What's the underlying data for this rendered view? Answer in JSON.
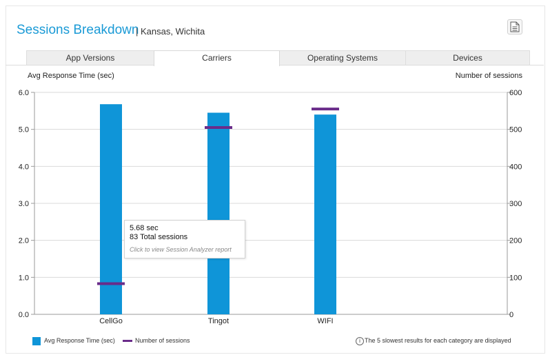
{
  "header": {
    "title": "Sessions Breakdown",
    "subtitle": "| Kansas, Wichita"
  },
  "toolbar": {
    "export_icon": "document-icon"
  },
  "tabs": [
    {
      "label": "App Versions",
      "active": false
    },
    {
      "label": "Carriers",
      "active": true
    },
    {
      "label": "Operating Systems",
      "active": false
    },
    {
      "label": "Devices",
      "active": false
    }
  ],
  "chart_data": {
    "type": "bar",
    "categories": [
      "CellGo",
      "Tingot",
      "WIFI"
    ],
    "left_axis_title": "Avg Response Time (sec)",
    "right_axis_title": "Number of sessions",
    "left_ticks": [
      "0.0",
      "1.0",
      "2.0",
      "3.0",
      "4.0",
      "5.0",
      "6.0"
    ],
    "right_ticks": [
      "0",
      "100",
      "200",
      "300",
      "400",
      "500",
      "600"
    ],
    "ylim_left": [
      0,
      6
    ],
    "ylim_right": [
      0,
      600
    ],
    "grid": true,
    "series": [
      {
        "name": "Avg Response Time (sec)",
        "type": "bar",
        "axis": "left",
        "color": "#0f95d8",
        "values": [
          5.68,
          5.45,
          5.4
        ]
      },
      {
        "name": "Number of sessions",
        "type": "marker",
        "axis": "right",
        "color": "#6a2c8a",
        "values": [
          83,
          505,
          555
        ]
      }
    ]
  },
  "tooltip": {
    "line1": "5.68 sec",
    "line2": "83 Total sessions",
    "hint": "Click to view Session Analyzer report"
  },
  "legend": {
    "bar_label": "Avg Response Time (sec)",
    "line_label": "Number of sessions"
  },
  "footer_note": "The 5 slowest results for each category are displayed",
  "colors": {
    "accent": "#1a9ad6",
    "bar": "#0f95d8",
    "marker": "#6a2c8a",
    "grid": "#d9d9d9"
  }
}
